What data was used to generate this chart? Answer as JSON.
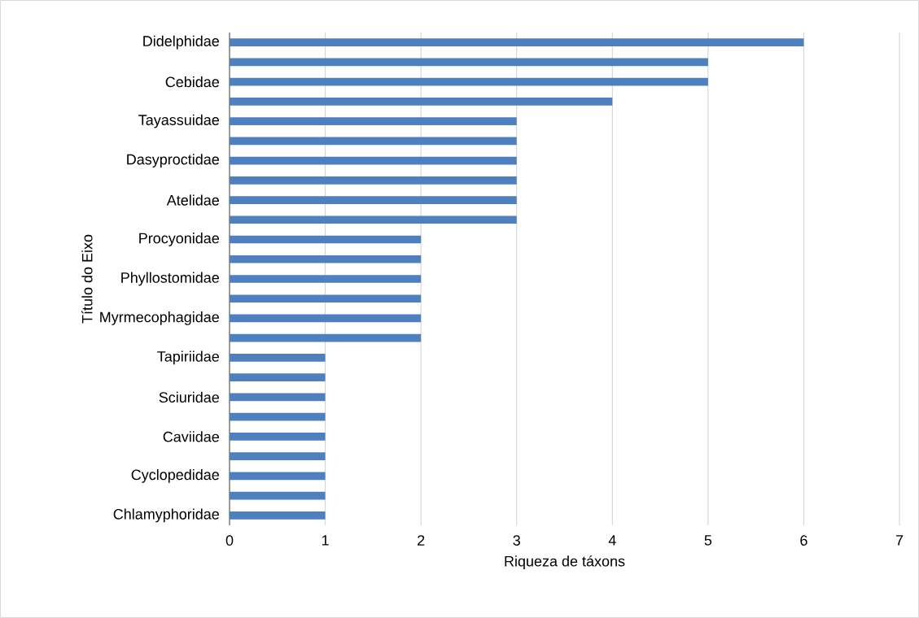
{
  "chart_data": {
    "type": "bar",
    "orientation": "horizontal",
    "xlabel": "Riqueza de táxons",
    "ylabel": "Título do Eixo",
    "categories": [
      "Didelphidae",
      null,
      "Cebidae",
      null,
      "Tayassuidae",
      null,
      "Dasyproctidae",
      null,
      "Atelidae",
      null,
      "Procyonidae",
      null,
      "Phyllostomidae",
      null,
      "Myrmecophagidae",
      null,
      "Tapiriidae",
      null,
      "Sciuridae",
      null,
      "Caviidae",
      null,
      "Cyclopedidae",
      null,
      "Chlamyphoridae"
    ],
    "values": [
      6,
      5,
      5,
      4,
      3,
      3,
      3,
      3,
      3,
      3,
      2,
      2,
      2,
      2,
      2,
      2,
      1,
      1,
      1,
      1,
      1,
      1,
      1,
      1,
      1
    ],
    "color": "#4e7fbf",
    "xlim": [
      0,
      7
    ],
    "xticks": [
      0,
      1,
      2,
      3,
      4,
      5,
      6,
      7
    ],
    "grid": "x"
  }
}
